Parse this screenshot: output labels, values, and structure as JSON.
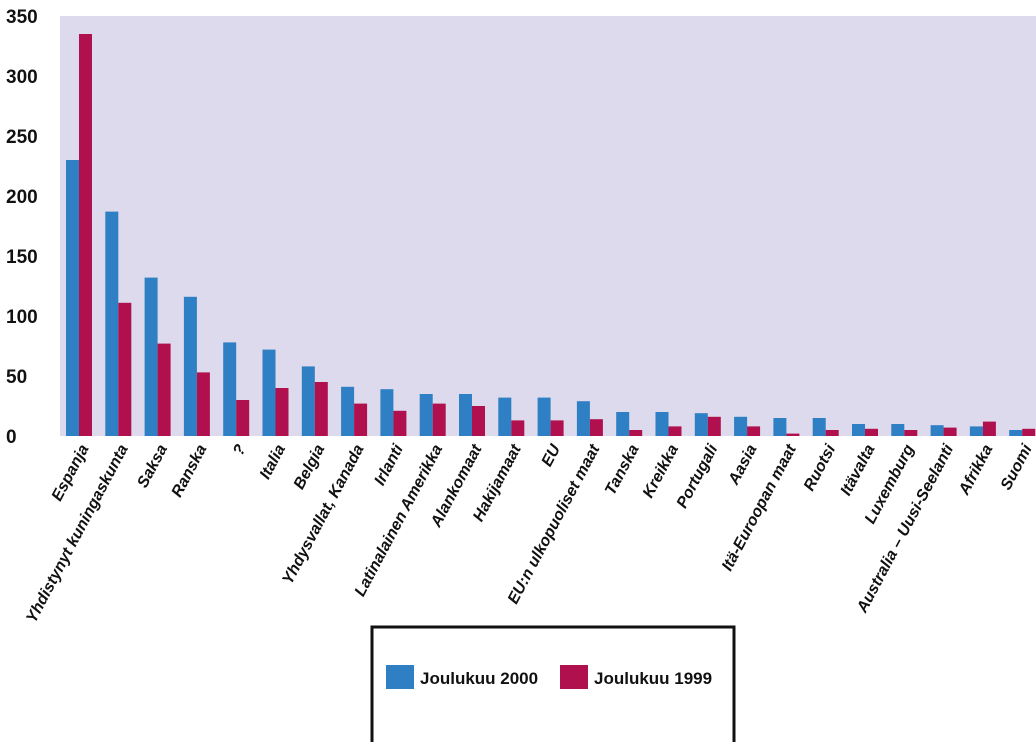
{
  "chart_data": {
    "type": "bar",
    "categories": [
      "Espanja",
      "Yhdistynyt kuningaskunta",
      "Saksa",
      "Ranska",
      "?",
      "Italia",
      "Belgia",
      "Yhdysvallat, Kanada",
      "Irlanti",
      "Latinalainen Amerikka",
      "Alankomaat",
      "Hakijamaat",
      "EU",
      "EU:n ulkopuoliset maat",
      "Tanska",
      "Kreikka",
      "Portugali",
      "Aasia",
      "Itä-Euroopan maat",
      "Ruotsi",
      "Itävalta",
      "Luxemburg",
      "Australia – Uusi-Seelanti",
      "Afrikka",
      "Suomi"
    ],
    "series": [
      {
        "name": "Joulukuu 2000",
        "color": "#2e7fc4",
        "values": [
          230,
          187,
          132,
          116,
          78,
          72,
          58,
          41,
          39,
          35,
          35,
          32,
          32,
          29,
          20,
          20,
          19,
          16,
          15,
          15,
          10,
          10,
          9,
          8,
          5
        ]
      },
      {
        "name": "Joulukuu 1999",
        "color": "#b0104e",
        "values": [
          335,
          111,
          77,
          53,
          30,
          40,
          45,
          27,
          21,
          27,
          25,
          13,
          13,
          14,
          5,
          8,
          16,
          8,
          2,
          5,
          6,
          5,
          7,
          12,
          6
        ]
      }
    ],
    "ylim": [
      0,
      350
    ],
    "yticks": [
      "0",
      "50",
      "100",
      "150",
      "200",
      "250",
      "300",
      "350"
    ],
    "xlabel": "",
    "ylabel": "",
    "title": "",
    "grid": false,
    "legend_position": "bottom-center",
    "plot_background": "#dcdaec"
  }
}
